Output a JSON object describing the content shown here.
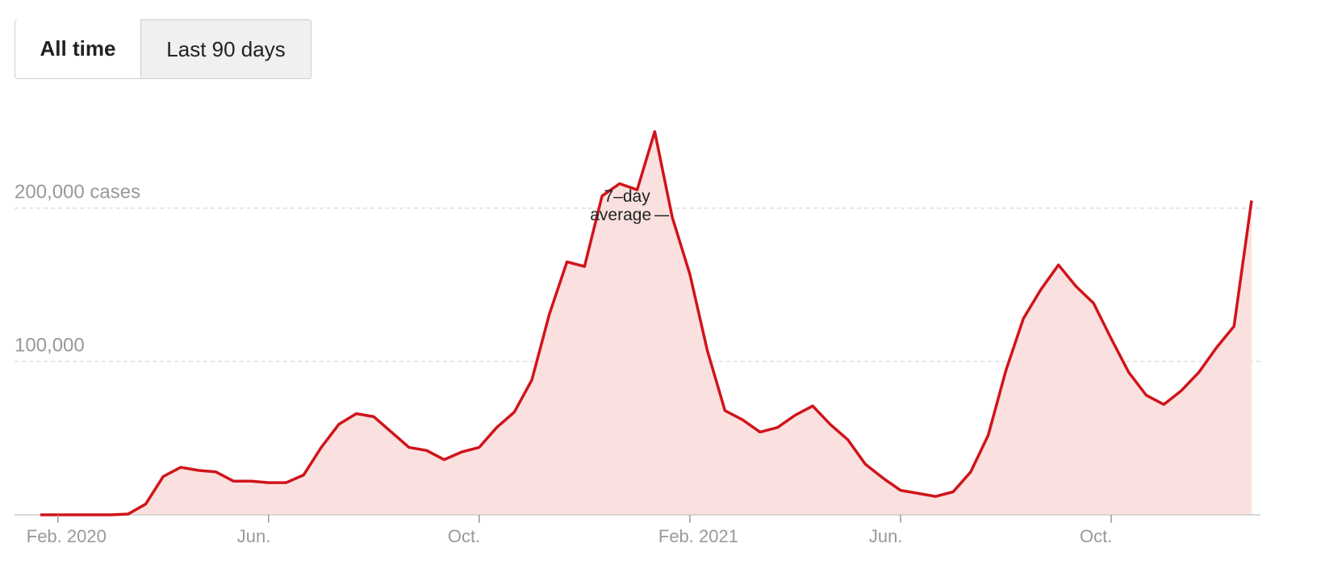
{
  "buttons": [
    "All time",
    "Last 90 days"
  ],
  "chart_data": {
    "type": "area",
    "annotation": [
      "7–day",
      "average"
    ],
    "categories": [
      null,
      "Feb. 2020",
      null,
      null,
      null,
      null,
      null,
      null,
      null,
      null,
      null,
      null,
      null,
      "Jun.",
      null,
      null,
      null,
      null,
      null,
      null,
      null,
      null,
      null,
      null,
      null,
      "Oct.",
      null,
      null,
      null,
      null,
      null,
      null,
      null,
      null,
      null,
      null,
      null,
      "Feb. 2021",
      null,
      null,
      null,
      null,
      null,
      null,
      null,
      null,
      null,
      null,
      null,
      "Jun.",
      null,
      null,
      null,
      null,
      null,
      null,
      null,
      null,
      null,
      null,
      null,
      "Oct.",
      null,
      null,
      null,
      null,
      null,
      null,
      null,
      null
    ],
    "series": [
      {
        "name": "7-day average",
        "color": "#d0141a",
        "fill": "#fbe0e0",
        "values": [
          0,
          0,
          0,
          0,
          0,
          500,
          7000,
          25000,
          31000,
          29000,
          28000,
          22000,
          22000,
          21000,
          21000,
          26000,
          44000,
          59000,
          66000,
          64000,
          54000,
          44000,
          42000,
          36000,
          41000,
          44000,
          57000,
          67000,
          88000,
          131000,
          165000,
          162000,
          208000,
          216000,
          212000,
          250000,
          194000,
          157000,
          107000,
          68000,
          62000,
          54000,
          57000,
          65000,
          71000,
          59000,
          49000,
          33000,
          24000,
          16000,
          14000,
          12000,
          15000,
          28000,
          52000,
          94000,
          128000,
          147000,
          163000,
          149000,
          138000,
          115000,
          93000,
          78000,
          72000,
          81000,
          93000,
          109000,
          123000,
          205000
        ]
      }
    ],
    "annotation_index": 36,
    "ylim": [
      0,
      250000
    ],
    "yticks": [
      {
        "value": 100000,
        "label": "100,000"
      },
      {
        "value": 200000,
        "label": "200,000 cases"
      }
    ],
    "grid": true
  }
}
